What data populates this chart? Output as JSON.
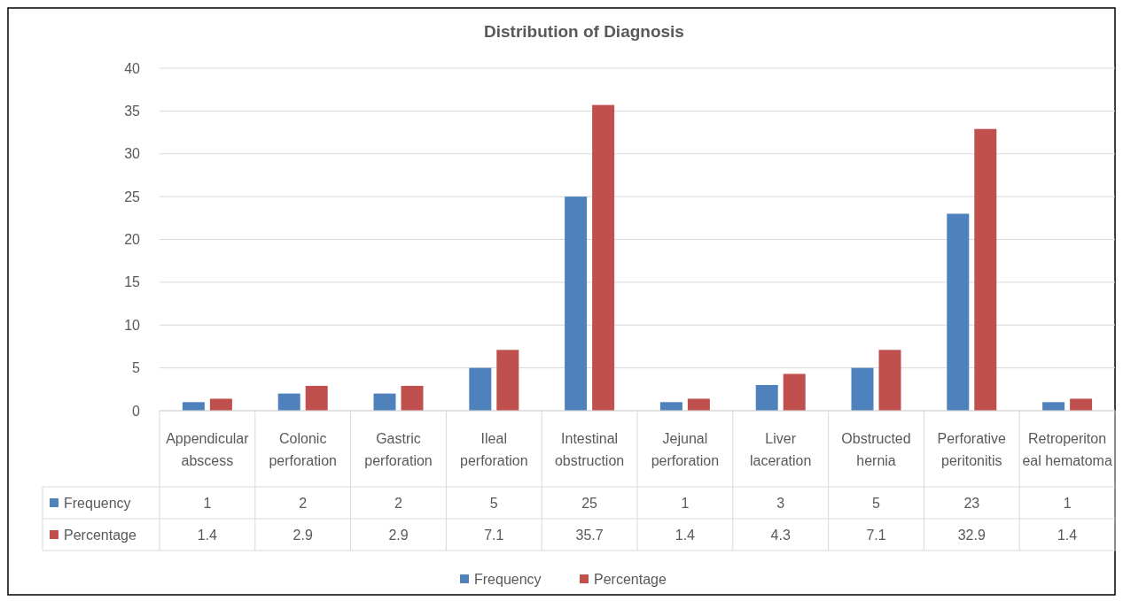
{
  "chart_data": {
    "type": "bar",
    "title": "Distribution of Diagnosis",
    "categories": [
      "Appendicular abscess",
      "Colonic perforation",
      "Gastric perforation",
      "Ileal perforation",
      "Intestinal obstruction",
      "Jejunal perforation",
      "Liver laceration",
      "Obstructed hernia",
      "Perforative peritonitis",
      "Retroperitoneal hematoma"
    ],
    "series": [
      {
        "name": "Frequency",
        "color": "#4f81bd",
        "values": [
          1,
          2,
          2,
          5,
          25,
          1,
          3,
          5,
          23,
          1
        ]
      },
      {
        "name": "Percentage",
        "color": "#c0504d",
        "values": [
          1.4,
          2.9,
          2.9,
          7.1,
          35.7,
          1.4,
          4.3,
          7.1,
          32.9,
          1.4
        ]
      }
    ],
    "ylim": [
      0,
      40
    ],
    "yticks": [
      0,
      5,
      10,
      15,
      20,
      25,
      30,
      35,
      40
    ],
    "grid": "y",
    "legend": "bottom",
    "data_labels": true
  }
}
